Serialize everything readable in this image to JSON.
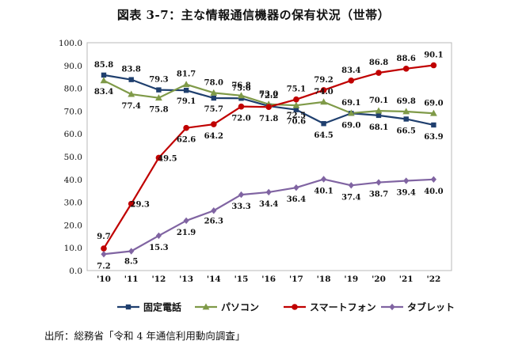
{
  "source_note": "出所：総務省「令和 4 年通信利用動向調査」",
  "chart_data": {
    "type": "line",
    "title": "図表 3-7：主な情報通信機器の保有状況（世帯）",
    "xlabel": "",
    "ylabel": "",
    "ylim": [
      0,
      100
    ],
    "yticks": [
      "0.0",
      "10.0",
      "20.0",
      "30.0",
      "40.0",
      "50.0",
      "60.0",
      "70.0",
      "80.0",
      "90.0",
      "100.0"
    ],
    "categories": [
      "'10",
      "'11",
      "'12",
      "'13",
      "'14",
      "'15",
      "'16",
      "'17",
      "'18",
      "'19",
      "'20",
      "'21",
      "'22"
    ],
    "grid": false,
    "legend_position": "bottom",
    "series": [
      {
        "name": "固定電話",
        "color": "#1f3f6e",
        "marker": "square",
        "values": [
          85.8,
          83.8,
          79.3,
          79.1,
          75.7,
          75.6,
          72.2,
          70.6,
          64.5,
          69.0,
          68.1,
          66.5,
          63.9
        ],
        "labels": [
          "85.8",
          "83.8",
          "79.3",
          "79.1",
          "75.7",
          "75.6",
          "72.2",
          "70.6",
          "64.5",
          "69.0",
          "68.1",
          "66.5",
          "63.9"
        ]
      },
      {
        "name": "パソコン",
        "color": "#7f9a48",
        "marker": "triangle",
        "values": [
          83.4,
          77.4,
          75.8,
          81.7,
          78.0,
          76.8,
          73.0,
          72.5,
          74.0,
          69.1,
          70.1,
          69.8,
          69.0
        ],
        "labels": [
          "83.4",
          "77.4",
          "75.8",
          "81.7",
          "78.0",
          "76.8",
          "73.0",
          "72.5",
          "74.0",
          "69.1",
          "70.1",
          "69.8",
          "69.0"
        ]
      },
      {
        "name": "スマートフォン",
        "color": "#c00000",
        "marker": "circle",
        "values": [
          9.7,
          29.3,
          49.5,
          62.6,
          64.2,
          72.0,
          71.8,
          75.1,
          79.2,
          83.4,
          86.8,
          88.6,
          90.1
        ],
        "labels": [
          "9.7",
          "29.3",
          "49.5",
          "62.6",
          "64.2",
          "72.0",
          "71.8",
          "75.1",
          "79.2",
          "83.4",
          "86.8",
          "88.6",
          "90.1"
        ]
      },
      {
        "name": "タブレット",
        "color": "#8064a2",
        "marker": "diamond",
        "values": [
          7.2,
          8.5,
          15.3,
          21.9,
          26.3,
          33.3,
          34.4,
          36.4,
          40.1,
          37.4,
          38.7,
          39.4,
          40.0
        ],
        "labels": [
          "7.2",
          "8.5",
          "15.3",
          "21.9",
          "26.3",
          "33.3",
          "34.4",
          "36.4",
          "40.1",
          "37.4",
          "38.7",
          "39.4",
          "40.0"
        ]
      }
    ]
  }
}
